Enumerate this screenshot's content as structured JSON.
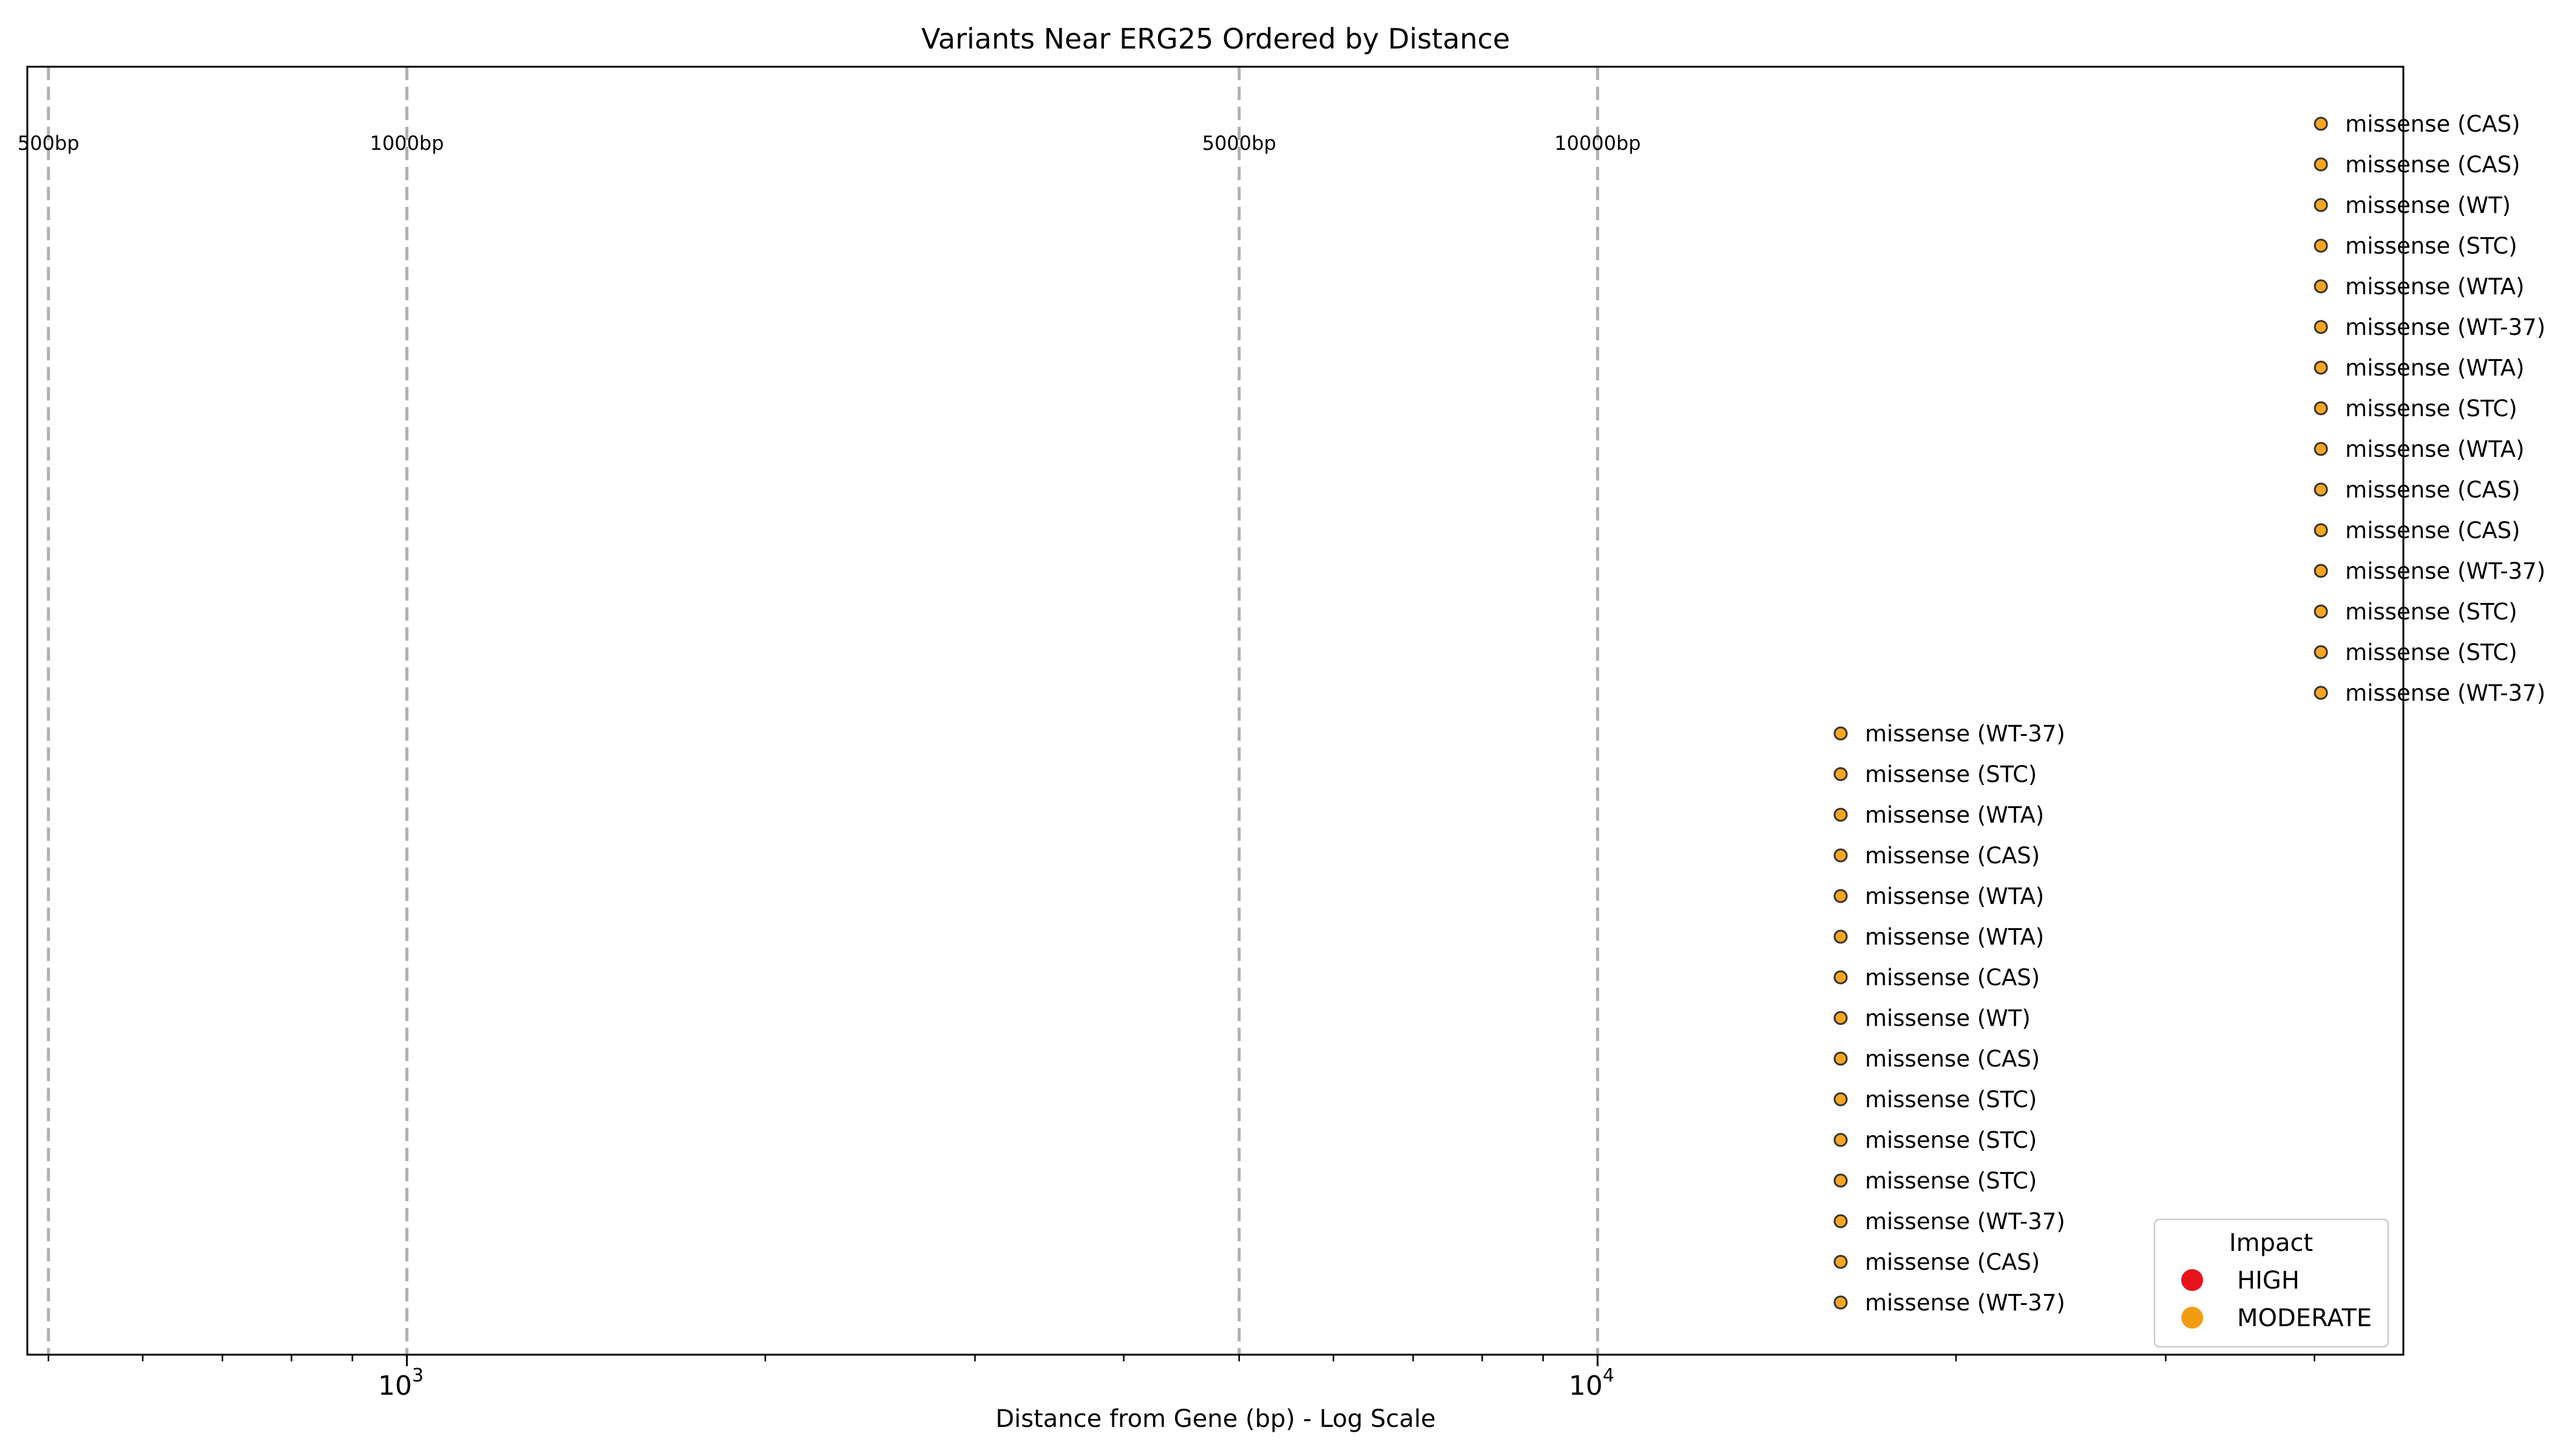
{
  "chart_data": {
    "type": "scatter",
    "title": "Variants Near ERG25 Ordered by Distance",
    "xlabel": "Distance from Gene (bp) - Log Scale",
    "ylabel": "",
    "x_scale": "log",
    "xlim": [
      480,
      47500
    ],
    "x_tick_labels": [
      {
        "value": 1000,
        "base": "10",
        "exp": "3"
      },
      {
        "value": 10000,
        "base": "10",
        "exp": "4"
      }
    ],
    "reference_lines": [
      {
        "x": 500,
        "label": "500bp"
      },
      {
        "x": 1000,
        "label": "1000bp"
      },
      {
        "x": 5000,
        "label": "5000bp"
      },
      {
        "x": 10000,
        "label": "10000bp"
      }
    ],
    "grid": false,
    "legend": {
      "title": "Impact",
      "position": "bottom-right",
      "entries": [
        {
          "name": "HIGH",
          "color": "#e8141c"
        },
        {
          "name": "MODERATE",
          "color": "#f39c12"
        }
      ]
    },
    "marker_color": "#f5a623",
    "points": [
      {
        "x": 40500,
        "rank": 0,
        "label": "missense (CAS)"
      },
      {
        "x": 40500,
        "rank": 1,
        "label": "missense (CAS)"
      },
      {
        "x": 40500,
        "rank": 2,
        "label": "missense (WT)"
      },
      {
        "x": 40500,
        "rank": 3,
        "label": "missense (STC)"
      },
      {
        "x": 40500,
        "rank": 4,
        "label": "missense (WTA)"
      },
      {
        "x": 40500,
        "rank": 5,
        "label": "missense (WT-37)"
      },
      {
        "x": 40500,
        "rank": 6,
        "label": "missense (WTA)"
      },
      {
        "x": 40500,
        "rank": 7,
        "label": "missense (STC)"
      },
      {
        "x": 40500,
        "rank": 8,
        "label": "missense (WTA)"
      },
      {
        "x": 40500,
        "rank": 9,
        "label": "missense (CAS)"
      },
      {
        "x": 40500,
        "rank": 10,
        "label": "missense (CAS)"
      },
      {
        "x": 40500,
        "rank": 11,
        "label": "missense (WT-37)"
      },
      {
        "x": 40500,
        "rank": 12,
        "label": "missense (STC)"
      },
      {
        "x": 40500,
        "rank": 13,
        "label": "missense (STC)"
      },
      {
        "x": 40500,
        "rank": 14,
        "label": "missense (WT-37)"
      },
      {
        "x": 16000,
        "rank": 15,
        "label": "missense (WT-37)"
      },
      {
        "x": 16000,
        "rank": 16,
        "label": "missense (STC)"
      },
      {
        "x": 16000,
        "rank": 17,
        "label": "missense (WTA)"
      },
      {
        "x": 16000,
        "rank": 18,
        "label": "missense (CAS)"
      },
      {
        "x": 16000,
        "rank": 19,
        "label": "missense (WTA)"
      },
      {
        "x": 16000,
        "rank": 20,
        "label": "missense (WTA)"
      },
      {
        "x": 16000,
        "rank": 21,
        "label": "missense (CAS)"
      },
      {
        "x": 16000,
        "rank": 22,
        "label": "missense (WT)"
      },
      {
        "x": 16000,
        "rank": 23,
        "label": "missense (CAS)"
      },
      {
        "x": 16000,
        "rank": 24,
        "label": "missense (STC)"
      },
      {
        "x": 16000,
        "rank": 25,
        "label": "missense (STC)"
      },
      {
        "x": 16000,
        "rank": 26,
        "label": "missense (STC)"
      },
      {
        "x": 16000,
        "rank": 27,
        "label": "missense (WT-37)"
      },
      {
        "x": 16000,
        "rank": 28,
        "label": "missense (CAS)"
      },
      {
        "x": 16000,
        "rank": 29,
        "label": "missense (WT-37)"
      }
    ]
  }
}
